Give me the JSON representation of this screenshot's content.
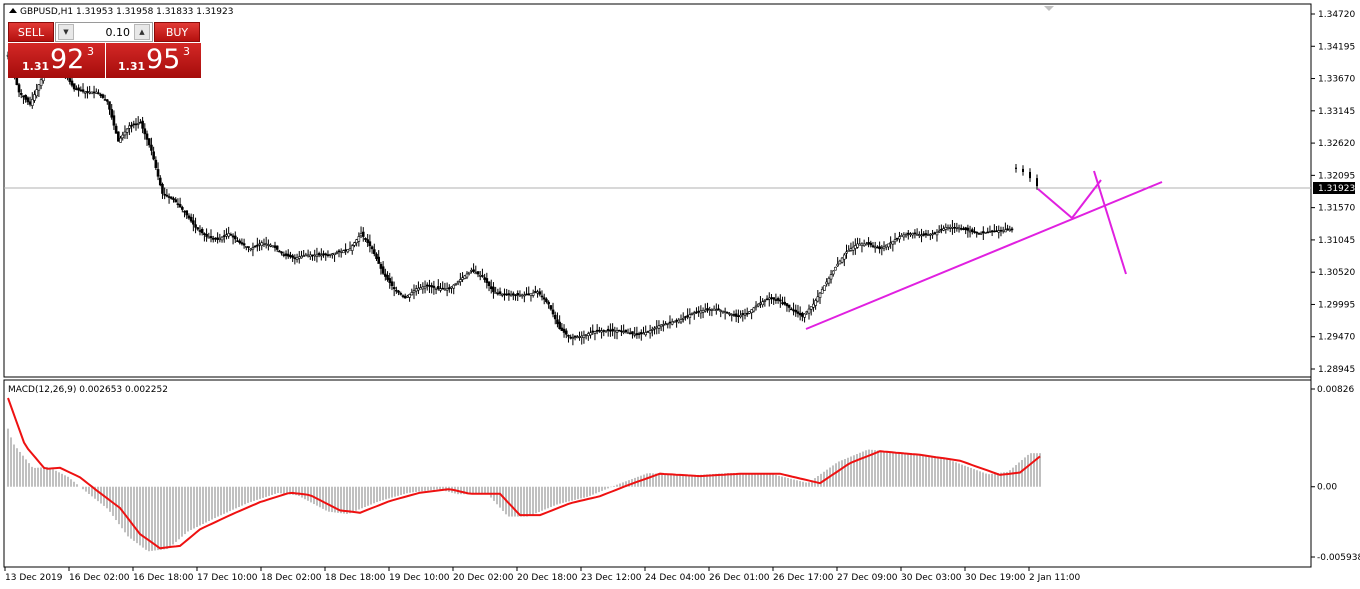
{
  "header": {
    "symbol_line": "GBPUSD,H1  1.31953  1.31958  1.31833  1.31923"
  },
  "one_click": {
    "sell_label": "SELL",
    "buy_label": "BUY",
    "volume": "0.10",
    "sell_price": {
      "prefix": "1.31",
      "big": "92",
      "sup": "3"
    },
    "buy_price": {
      "prefix": "1.31",
      "big": "95",
      "sup": "3"
    }
  },
  "price_axis": {
    "ticks": [
      "1.34720",
      "1.34195",
      "1.33670",
      "1.33145",
      "1.32620",
      "1.32095",
      "1.31570",
      "1.31045",
      "1.30520",
      "1.29995",
      "1.29470",
      "1.28945"
    ],
    "current_price": "1.31923"
  },
  "macd": {
    "label": "MACD(12,26,9) 0.002653 0.002252",
    "ticks": [
      "0.00826",
      "0.00",
      "-0.005938"
    ]
  },
  "time_axis": {
    "ticks": [
      "13 Dec 2019",
      "16 Dec 02:00",
      "16 Dec 18:00",
      "17 Dec 10:00",
      "18 Dec 02:00",
      "18 Dec 18:00",
      "19 Dec 10:00",
      "20 Dec 02:00",
      "20 Dec 18:00",
      "23 Dec 12:00",
      "24 Dec 04:00",
      "26 Dec 01:00",
      "26 Dec 17:00",
      "27 Dec 09:00",
      "30 Dec 03:00",
      "30 Dec 19:00",
      "2 Jan 11:00"
    ]
  },
  "colors": {
    "candle": "#000000",
    "macd_hist": "#c0c0c0",
    "macd_signal": "#ee1111",
    "drawings": "#e020e0",
    "sell_button": "#d42826"
  },
  "chart_data": {
    "type": "candlestick",
    "ylim": [
      1.28945,
      1.3472
    ],
    "close_path": [
      [
        0,
        1.3405
      ],
      [
        5,
        1.3345
      ],
      [
        10,
        1.3325
      ],
      [
        15,
        1.3365
      ],
      [
        20,
        1.3395
      ],
      [
        25,
        1.338
      ],
      [
        30,
        1.335
      ],
      [
        35,
        1.3345
      ],
      [
        40,
        1.3345
      ],
      [
        45,
        1.333
      ],
      [
        50,
        1.3265
      ],
      [
        55,
        1.329
      ],
      [
        60,
        1.3295
      ],
      [
        65,
        1.325
      ],
      [
        70,
        1.318
      ],
      [
        75,
        1.317
      ],
      [
        80,
        1.315
      ],
      [
        85,
        1.3125
      ],
      [
        90,
        1.311
      ],
      [
        95,
        1.3105
      ],
      [
        100,
        1.3115
      ],
      [
        105,
        1.31
      ],
      [
        110,
        1.309
      ],
      [
        115,
        1.31
      ],
      [
        120,
        1.3095
      ],
      [
        125,
        1.308
      ],
      [
        130,
        1.3075
      ],
      [
        135,
        1.308
      ],
      [
        140,
        1.308
      ],
      [
        145,
        1.308
      ],
      [
        150,
        1.3085
      ],
      [
        155,
        1.309
      ],
      [
        160,
        1.3115
      ],
      [
        165,
        1.309
      ],
      [
        170,
        1.305
      ],
      [
        175,
        1.3025
      ],
      [
        180,
        1.301
      ],
      [
        185,
        1.3025
      ],
      [
        190,
        1.303
      ],
      [
        195,
        1.3025
      ],
      [
        200,
        1.3025
      ],
      [
        205,
        1.304
      ],
      [
        210,
        1.3055
      ],
      [
        215,
        1.3045
      ],
      [
        220,
        1.302
      ],
      [
        225,
        1.3015
      ],
      [
        230,
        1.3015
      ],
      [
        235,
        1.3015
      ],
      [
        240,
        1.302
      ],
      [
        245,
        1.3
      ],
      [
        250,
        1.296
      ],
      [
        255,
        1.2945
      ],
      [
        260,
        1.2948
      ],
      [
        265,
        1.2955
      ],
      [
        270,
        1.2957
      ],
      [
        275,
        1.2957
      ],
      [
        280,
        1.2955
      ],
      [
        285,
        1.295
      ],
      [
        290,
        1.2955
      ],
      [
        295,
        1.2965
      ],
      [
        300,
        1.297
      ],
      [
        305,
        1.2975
      ],
      [
        310,
        1.2985
      ],
      [
        315,
        1.299
      ],
      [
        320,
        1.2992
      ],
      [
        325,
        1.2988
      ],
      [
        330,
        1.298
      ],
      [
        335,
        1.2985
      ],
      [
        340,
        1.3
      ],
      [
        345,
        1.301
      ],
      [
        350,
        1.3005
      ],
      [
        355,
        1.2992
      ],
      [
        360,
        1.298
      ],
      [
        365,
        1.3
      ],
      [
        370,
        1.303
      ],
      [
        375,
        1.306
      ],
      [
        380,
        1.3085
      ],
      [
        385,
        1.3098
      ],
      [
        390,
        1.3098
      ],
      [
        395,
        1.309
      ],
      [
        400,
        1.31
      ],
      [
        405,
        1.3112
      ],
      [
        410,
        1.3115
      ],
      [
        415,
        1.3112
      ],
      [
        420,
        1.3115
      ],
      [
        425,
        1.3125
      ],
      [
        430,
        1.3125
      ],
      [
        435,
        1.312
      ],
      [
        440,
        1.3115
      ],
      [
        445,
        1.3118
      ],
      [
        450,
        1.312
      ],
      [
        455,
        1.3122
      ]
    ],
    "last_bars_close": [
      1.322,
      1.3215,
      1.3205,
      1.3192
    ],
    "trend_line": {
      "from_bar": 358,
      "from": 1.2977,
      "to_bar": 510,
      "to": 1.3207
    },
    "macd_signal_shape": "hump-fall-rise",
    "macd_ylim": [
      -0.005938,
      0.00826
    ]
  }
}
